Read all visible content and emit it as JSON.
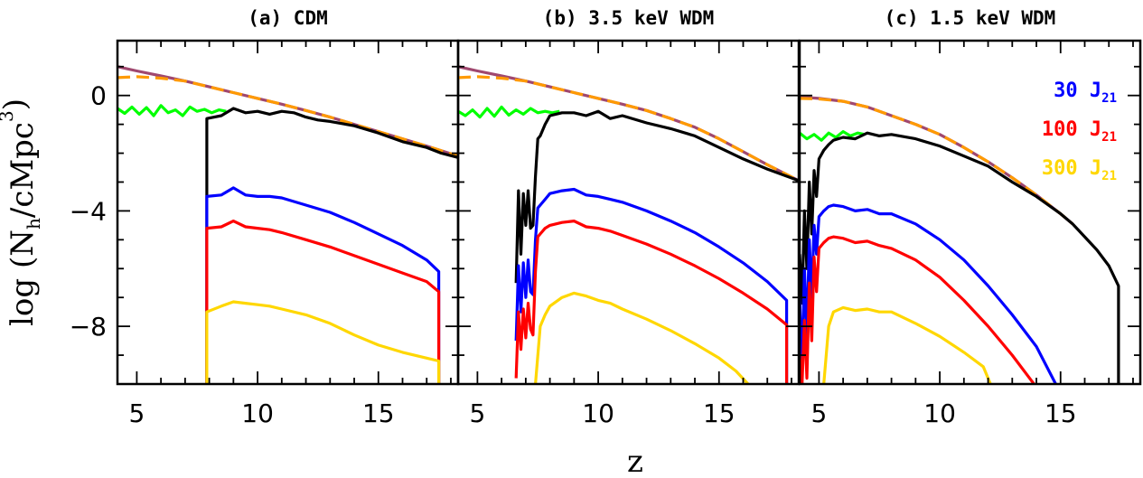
{
  "chart_data": {
    "type": "line",
    "xlabel": "z",
    "ylabel_main": "log (N",
    "ylabel_sub": "h",
    "ylabel_rest": "/cMpc",
    "ylabel_sup": "3",
    "ylabel_end": ")",
    "xlim": [
      4.2,
      18.3
    ],
    "ylim": [
      -10,
      1.9
    ],
    "xticks": [
      5,
      10,
      15
    ],
    "yticks": [
      0,
      -4,
      -8
    ],
    "ytick_labels": [
      "0",
      "−4",
      "−8"
    ],
    "legend": [
      {
        "label": "30 J",
        "sub": "21",
        "color": "#0000ff"
      },
      {
        "label": "100 J",
        "sub": "21",
        "color": "#ff0000"
      },
      {
        "label": "300 J",
        "sub": "21",
        "color": "#ffd700"
      }
    ],
    "panels": [
      {
        "title": "(a) CDM",
        "series": [
          {
            "key": "total_solid",
            "color": "#a0486f",
            "dash": false,
            "x": [
              4.2,
              5,
              6,
              7,
              8,
              9,
              10,
              11,
              12,
              13,
              14,
              15,
              16,
              17,
              18.3
            ],
            "y": [
              1.0,
              0.85,
              0.68,
              0.5,
              0.3,
              0.1,
              -0.1,
              -0.3,
              -0.52,
              -0.75,
              -1.0,
              -1.25,
              -1.5,
              -1.75,
              -2.1
            ]
          },
          {
            "key": "total_dashed",
            "color": "#ff9a00",
            "dash": true,
            "x": [
              4.2,
              5,
              6,
              7,
              8,
              9,
              10,
              11,
              12,
              13,
              14,
              15,
              16,
              17,
              18.3
            ],
            "y": [
              0.62,
              0.65,
              0.6,
              0.5,
              0.3,
              0.1,
              -0.1,
              -0.3,
              -0.52,
              -0.75,
              -1.0,
              -1.25,
              -1.5,
              -1.75,
              -2.1
            ]
          },
          {
            "key": "green",
            "color": "#00ff00",
            "dash": false,
            "x": [
              4.2,
              4.5,
              4.8,
              5.1,
              5.4,
              5.7,
              6.0,
              6.3,
              6.6,
              6.9,
              7.2,
              7.5,
              7.8,
              8.1,
              8.4,
              8.7
            ],
            "y": [
              -0.45,
              -0.62,
              -0.4,
              -0.65,
              -0.42,
              -0.7,
              -0.35,
              -0.6,
              -0.5,
              -0.7,
              -0.4,
              -0.55,
              -0.48,
              -0.6,
              -0.5,
              -0.55
            ]
          },
          {
            "key": "black",
            "color": "#000000",
            "dash": false,
            "x": [
              7.9,
              7.9,
              8.5,
              9,
              9.5,
              10,
              10.5,
              11,
              11.5,
              12,
              12.5,
              13,
              14,
              15,
              16,
              17,
              17.6,
              18.3
            ],
            "y": [
              -10,
              -0.8,
              -0.7,
              -0.45,
              -0.6,
              -0.55,
              -0.65,
              -0.55,
              -0.6,
              -0.75,
              -0.85,
              -0.9,
              -1.05,
              -1.3,
              -1.6,
              -1.8,
              -2.0,
              -2.15
            ]
          },
          {
            "key": "j30",
            "color": "#0000ff",
            "dash": false,
            "x": [
              7.9,
              7.9,
              8.5,
              9,
              9.5,
              10,
              10.5,
              11,
              12,
              13,
              14,
              15,
              16,
              17,
              17.5,
              17.5
            ],
            "y": [
              -10,
              -3.5,
              -3.45,
              -3.2,
              -3.45,
              -3.5,
              -3.5,
              -3.55,
              -3.8,
              -4.05,
              -4.4,
              -4.8,
              -5.2,
              -5.7,
              -6.1,
              -10
            ]
          },
          {
            "key": "j100",
            "color": "#ff0000",
            "dash": false,
            "x": [
              7.9,
              7.9,
              8.5,
              9,
              9.5,
              10,
              10.5,
              11,
              12,
              13,
              14,
              15,
              16,
              17,
              17.5,
              17.5
            ],
            "y": [
              -10,
              -4.6,
              -4.55,
              -4.35,
              -4.55,
              -4.6,
              -4.65,
              -4.75,
              -5.0,
              -5.25,
              -5.55,
              -5.85,
              -6.15,
              -6.45,
              -6.8,
              -10
            ]
          },
          {
            "key": "j300",
            "color": "#ffd700",
            "dash": false,
            "x": [
              7.9,
              7.9,
              8.5,
              9,
              9.5,
              10,
              10.5,
              11,
              12,
              13,
              14,
              15,
              16,
              17,
              17.5,
              17.5
            ],
            "y": [
              -10,
              -7.5,
              -7.3,
              -7.15,
              -7.2,
              -7.25,
              -7.3,
              -7.4,
              -7.6,
              -7.9,
              -8.3,
              -8.65,
              -8.9,
              -9.1,
              -9.2,
              -10
            ]
          }
        ]
      },
      {
        "title": "(b) 3.5 keV WDM",
        "series": [
          {
            "key": "total_solid",
            "color": "#a0486f",
            "dash": false,
            "x": [
              4.2,
              5,
              6,
              7,
              8,
              9,
              10,
              11,
              12,
              13,
              14,
              15,
              16,
              17,
              18.3
            ],
            "y": [
              1.0,
              0.85,
              0.68,
              0.5,
              0.3,
              0.1,
              -0.1,
              -0.3,
              -0.52,
              -0.8,
              -1.1,
              -1.5,
              -1.95,
              -2.4,
              -2.95
            ]
          },
          {
            "key": "total_dashed",
            "color": "#ff9a00",
            "dash": true,
            "x": [
              4.2,
              5,
              6,
              7,
              8,
              9,
              10,
              11,
              12,
              13,
              14,
              15,
              16,
              17,
              18.3
            ],
            "y": [
              0.62,
              0.65,
              0.6,
              0.5,
              0.3,
              0.1,
              -0.1,
              -0.3,
              -0.52,
              -0.8,
              -1.1,
              -1.5,
              -1.95,
              -2.4,
              -2.95
            ]
          },
          {
            "key": "green",
            "color": "#00ff00",
            "dash": false,
            "x": [
              4.2,
              4.5,
              4.8,
              5.1,
              5.4,
              5.7,
              6.0,
              6.3,
              6.6,
              6.9,
              7.2,
              7.5,
              7.8,
              8.1,
              8.4
            ],
            "y": [
              -0.55,
              -0.7,
              -0.5,
              -0.75,
              -0.45,
              -0.72,
              -0.4,
              -0.68,
              -0.5,
              -0.65,
              -0.45,
              -0.6,
              -0.55,
              -0.6,
              -0.55
            ]
          },
          {
            "key": "black",
            "color": "#000000",
            "dash": false,
            "x": [
              6.6,
              6.7,
              6.8,
              6.9,
              7.0,
              7.1,
              7.2,
              7.3,
              7.4,
              7.5,
              7.6,
              7.8,
              8.0,
              8.5,
              9,
              9.5,
              10,
              10.5,
              11,
              12,
              13,
              14,
              15,
              16,
              17,
              18.3
            ],
            "y": [
              -6.5,
              -3.3,
              -5.5,
              -3.4,
              -4.5,
              -3.3,
              -4.6,
              -4.5,
              -2.8,
              -1.5,
              -1.4,
              -1.0,
              -0.7,
              -0.6,
              -0.6,
              -0.7,
              -0.55,
              -0.8,
              -0.7,
              -0.95,
              -1.15,
              -1.4,
              -1.8,
              -2.2,
              -2.55,
              -2.95
            ]
          },
          {
            "key": "j30",
            "color": "#0000ff",
            "dash": false,
            "x": [
              6.6,
              6.7,
              6.8,
              6.9,
              7.0,
              7.1,
              7.2,
              7.3,
              7.4,
              7.5,
              7.6,
              7.8,
              8.0,
              8.5,
              9,
              9.5,
              10,
              10.5,
              11,
              12,
              13,
              14,
              15,
              16,
              17,
              17.8,
              17.8
            ],
            "y": [
              -8.5,
              -5.9,
              -7.5,
              -5.8,
              -7.0,
              -5.7,
              -6.8,
              -6.9,
              -5.0,
              -3.9,
              -3.8,
              -3.6,
              -3.4,
              -3.3,
              -3.25,
              -3.45,
              -3.5,
              -3.6,
              -3.7,
              -4.0,
              -4.35,
              -4.75,
              -5.25,
              -5.8,
              -6.45,
              -7.1,
              -10
            ]
          },
          {
            "key": "j100",
            "color": "#ff0000",
            "dash": false,
            "x": [
              6.6,
              6.7,
              6.8,
              6.9,
              7.0,
              7.1,
              7.2,
              7.3,
              7.4,
              7.5,
              7.6,
              7.8,
              8.0,
              8.5,
              9,
              9.5,
              10,
              10.5,
              11,
              12,
              13,
              14,
              15,
              16,
              17,
              17.8,
              17.8
            ],
            "y": [
              -9.8,
              -7.5,
              -8.8,
              -7.4,
              -8.4,
              -7.2,
              -8.1,
              -8.3,
              -6.1,
              -4.9,
              -4.8,
              -4.6,
              -4.5,
              -4.4,
              -4.35,
              -4.55,
              -4.6,
              -4.7,
              -4.85,
              -5.15,
              -5.5,
              -5.9,
              -6.35,
              -6.85,
              -7.4,
              -7.95,
              -10
            ]
          },
          {
            "key": "j300",
            "color": "#ffd700",
            "dash": false,
            "x": [
              7.4,
              7.6,
              7.8,
              8.0,
              8.5,
              9,
              9.5,
              10,
              10.5,
              11,
              12,
              13,
              14,
              15,
              15.7,
              16.2
            ],
            "y": [
              -10,
              -8.0,
              -7.6,
              -7.3,
              -7.0,
              -6.85,
              -6.95,
              -7.1,
              -7.2,
              -7.4,
              -7.75,
              -8.15,
              -8.6,
              -9.1,
              -9.55,
              -10
            ]
          }
        ]
      },
      {
        "title": "(c) 1.5 keV WDM",
        "series": [
          {
            "key": "total_solid",
            "color": "#a0486f",
            "dash": false,
            "x": [
              4.2,
              5,
              6,
              7,
              8,
              9,
              10,
              11,
              12,
              13,
              14,
              15,
              15.5
            ],
            "y": [
              -0.05,
              -0.1,
              -0.2,
              -0.4,
              -0.7,
              -1.0,
              -1.35,
              -1.8,
              -2.3,
              -2.85,
              -3.45,
              -4.1,
              -4.45
            ]
          },
          {
            "key": "total_dashed",
            "color": "#ff9a00",
            "dash": true,
            "x": [
              4.2,
              5,
              6,
              7,
              8,
              9,
              10,
              11,
              12,
              13,
              14,
              15,
              15.5
            ],
            "y": [
              -0.1,
              -0.12,
              -0.2,
              -0.4,
              -0.7,
              -1.0,
              -1.35,
              -1.8,
              -2.3,
              -2.85,
              -3.45,
              -4.1,
              -4.45
            ]
          },
          {
            "key": "green",
            "color": "#00ff00",
            "dash": false,
            "x": [
              4.2,
              4.5,
              4.8,
              5.1,
              5.4,
              5.7,
              6.0,
              6.3,
              6.6,
              6.9
            ],
            "y": [
              -1.3,
              -1.5,
              -1.35,
              -1.55,
              -1.3,
              -1.45,
              -1.25,
              -1.4,
              -1.3,
              -1.35
            ]
          },
          {
            "key": "black",
            "color": "#000000",
            "dash": false,
            "x": [
              4.2,
              4.3,
              4.4,
              4.5,
              4.6,
              4.7,
              4.8,
              4.9,
              5.0,
              5.2,
              5.4,
              5.6,
              6.0,
              6.5,
              7,
              7.5,
              8,
              9,
              10,
              11,
              12,
              13,
              14,
              15,
              15.5,
              16,
              16.5,
              17,
              17.4,
              17.4
            ],
            "y": [
              -5.5,
              -7.2,
              -4.0,
              -6.0,
              -3.0,
              -4.8,
              -2.6,
              -3.5,
              -2.2,
              -1.9,
              -1.7,
              -1.55,
              -1.45,
              -1.5,
              -1.3,
              -1.4,
              -1.35,
              -1.5,
              -1.75,
              -2.1,
              -2.45,
              -3.0,
              -3.5,
              -4.1,
              -4.45,
              -4.9,
              -5.35,
              -5.9,
              -6.6,
              -10
            ]
          },
          {
            "key": "j30",
            "color": "#0000ff",
            "dash": false,
            "x": [
              4.2,
              4.3,
              4.4,
              4.5,
              4.6,
              4.7,
              4.8,
              4.9,
              5.0,
              5.2,
              5.4,
              5.6,
              6.0,
              6.5,
              7,
              7.5,
              8,
              9,
              10,
              11,
              12,
              13,
              14,
              14.8
            ],
            "y": [
              -7.0,
              -9.5,
              -6.0,
              -8.3,
              -5.0,
              -7.0,
              -4.5,
              -5.5,
              -4.2,
              -4.0,
              -3.85,
              -3.8,
              -3.85,
              -4.0,
              -3.95,
              -4.1,
              -4.1,
              -4.45,
              -5.0,
              -5.7,
              -6.6,
              -7.6,
              -8.7,
              -10
            ]
          },
          {
            "key": "j100",
            "color": "#ff0000",
            "dash": false,
            "x": [
              4.2,
              4.3,
              4.4,
              4.5,
              4.6,
              4.7,
              4.8,
              4.9,
              5.0,
              5.2,
              5.4,
              5.6,
              6.0,
              6.5,
              7,
              7.5,
              8,
              9,
              10,
              11,
              12,
              13,
              13.9
            ],
            "y": [
              -9.0,
              -10,
              -7.8,
              -9.8,
              -6.5,
              -8.5,
              -5.6,
              -6.8,
              -5.3,
              -5.1,
              -4.95,
              -4.9,
              -4.95,
              -5.1,
              -5.05,
              -5.2,
              -5.3,
              -5.7,
              -6.3,
              -7.1,
              -8.0,
              -9.0,
              -10
            ]
          },
          {
            "key": "j300",
            "color": "#ffd700",
            "dash": false,
            "x": [
              5.2,
              5.4,
              5.6,
              6.0,
              6.5,
              7,
              7.5,
              8,
              9,
              10,
              11,
              11.8,
              12.1
            ],
            "y": [
              -10,
              -8.0,
              -7.5,
              -7.35,
              -7.45,
              -7.4,
              -7.5,
              -7.5,
              -7.9,
              -8.35,
              -8.9,
              -9.4,
              -10
            ]
          }
        ]
      }
    ]
  }
}
